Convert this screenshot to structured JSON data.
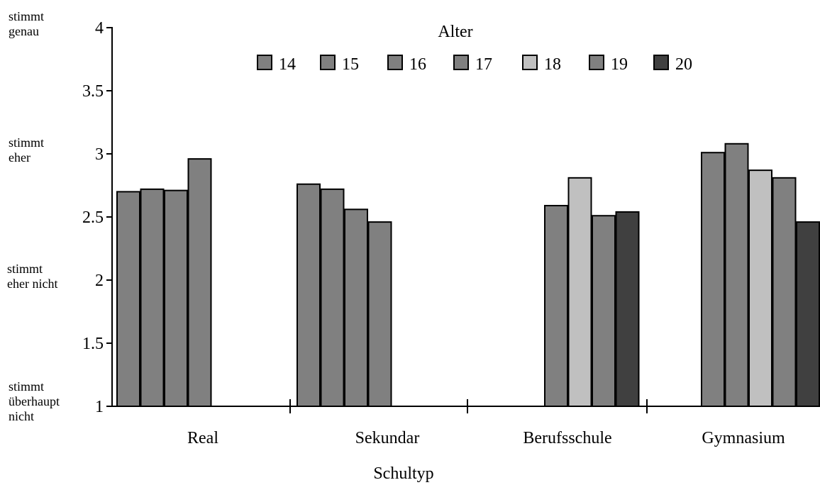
{
  "chart_data": {
    "type": "bar",
    "title": "",
    "xlabel": "Schultyp",
    "ylabel": "",
    "ylim": [
      1,
      4
    ],
    "yticks": [
      "1",
      "1.5",
      "2",
      "2.5",
      "3",
      "3.5",
      "4"
    ],
    "y_side_labels": [
      {
        "y": 4,
        "lines": [
          "stimmt",
          "genau"
        ]
      },
      {
        "y": 3,
        "lines": [
          "stimmt",
          "eher"
        ]
      },
      {
        "y": 2,
        "lines": [
          "stimmt",
          "eher nicht"
        ]
      },
      {
        "y": 1,
        "lines": [
          "stimmt",
          "überhaupt",
          "nicht"
        ]
      }
    ],
    "legend_title": "Alter",
    "legend_position": "top-center",
    "grid": false,
    "categories": [
      "Real",
      "Sekundar",
      "Berufsschule",
      "Gymnasium"
    ],
    "series": [
      {
        "name": "14",
        "color": "#808080",
        "values": [
          2.7,
          2.76,
          null,
          null
        ]
      },
      {
        "name": "15",
        "color": "#808080",
        "values": [
          2.72,
          2.72,
          null,
          null
        ]
      },
      {
        "name": "16",
        "color": "#808080",
        "values": [
          2.71,
          2.56,
          null,
          3.01
        ]
      },
      {
        "name": "17",
        "color": "#808080",
        "values": [
          2.96,
          2.46,
          2.59,
          3.08
        ]
      },
      {
        "name": "18",
        "color": "#c0c0c0",
        "values": [
          null,
          null,
          2.81,
          2.87
        ]
      },
      {
        "name": "19",
        "color": "#808080",
        "values": [
          null,
          null,
          2.51,
          2.81
        ]
      },
      {
        "name": "20",
        "color": "#404040",
        "values": [
          null,
          null,
          2.54,
          2.46
        ]
      }
    ]
  }
}
